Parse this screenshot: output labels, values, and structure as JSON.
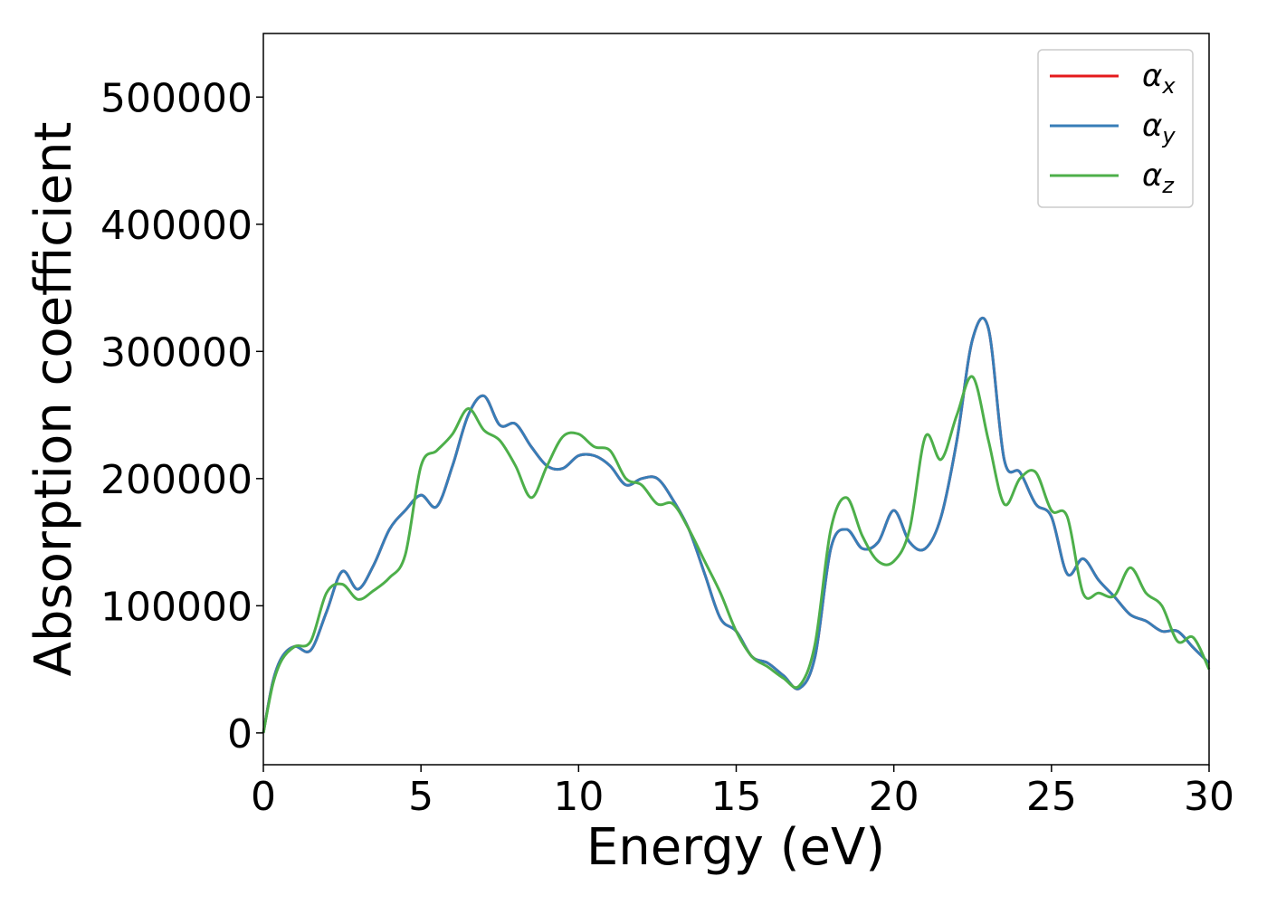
{
  "chart_data": {
    "type": "line",
    "title": "",
    "xlabel": "Energy (eV)",
    "ylabel": "Absorption coefficient",
    "xlim": [
      0,
      30
    ],
    "ylim": [
      -25000,
      550000
    ],
    "xticks": [
      0,
      5,
      10,
      15,
      20,
      25,
      30
    ],
    "xtick_labels": [
      "0",
      "5",
      "10",
      "15",
      "20",
      "25",
      "30"
    ],
    "yticks": [
      0,
      100000,
      200000,
      300000,
      400000,
      500000
    ],
    "ytick_labels": [
      "0",
      "100000",
      "200000",
      "300000",
      "400000",
      "500000"
    ],
    "grid": false,
    "legend_position": "top-right",
    "series": [
      {
        "name": "α",
        "subscript": "x",
        "color": "#e41a1c",
        "x": [
          0,
          0.3,
          0.6,
          1.0,
          1.5,
          2.0,
          2.5,
          3.0,
          3.5,
          4.0,
          4.5,
          5.0,
          5.5,
          6.0,
          6.5,
          7.0,
          7.5,
          8.0,
          8.5,
          9.0,
          9.5,
          10.0,
          10.5,
          11.0,
          11.5,
          12.0,
          12.5,
          13.0,
          13.5,
          14.0,
          14.5,
          15.0,
          15.5,
          16.0,
          16.5,
          17.0,
          17.5,
          18.0,
          18.5,
          19.0,
          19.5,
          20.0,
          20.5,
          21.0,
          21.5,
          22.0,
          22.5,
          23.0,
          23.5,
          24.0,
          24.5,
          25.0,
          25.5,
          26.0,
          26.5,
          27.0,
          27.5,
          28.0,
          28.5,
          29.0,
          29.5,
          30.0
        ],
        "values": [
          0,
          40000,
          60000,
          68000,
          65000,
          95000,
          127000,
          113000,
          132000,
          160000,
          175000,
          187000,
          178000,
          210000,
          250000,
          265000,
          242000,
          243000,
          225000,
          210000,
          208000,
          218000,
          218000,
          210000,
          195000,
          200000,
          200000,
          183000,
          160000,
          125000,
          90000,
          80000,
          60000,
          55000,
          45000,
          35000,
          60000,
          145000,
          160000,
          145000,
          150000,
          175000,
          150000,
          145000,
          170000,
          230000,
          310000,
          318000,
          215000,
          205000,
          180000,
          170000,
          125000,
          137000,
          120000,
          107000,
          93000,
          88000,
          80000,
          80000,
          67000,
          55000
        ]
      },
      {
        "name": "α",
        "subscript": "y",
        "color": "#377eb8",
        "x": [
          0,
          0.3,
          0.6,
          1.0,
          1.5,
          2.0,
          2.5,
          3.0,
          3.5,
          4.0,
          4.5,
          5.0,
          5.5,
          6.0,
          6.5,
          7.0,
          7.5,
          8.0,
          8.5,
          9.0,
          9.5,
          10.0,
          10.5,
          11.0,
          11.5,
          12.0,
          12.5,
          13.0,
          13.5,
          14.0,
          14.5,
          15.0,
          15.5,
          16.0,
          16.5,
          17.0,
          17.5,
          18.0,
          18.5,
          19.0,
          19.5,
          20.0,
          20.5,
          21.0,
          21.5,
          22.0,
          22.5,
          23.0,
          23.5,
          24.0,
          24.5,
          25.0,
          25.5,
          26.0,
          26.5,
          27.0,
          27.5,
          28.0,
          28.5,
          29.0,
          29.5,
          30.0
        ],
        "values": [
          0,
          40000,
          60000,
          68000,
          65000,
          95000,
          127000,
          113000,
          132000,
          160000,
          175000,
          187000,
          178000,
          210000,
          250000,
          265000,
          242000,
          243000,
          225000,
          210000,
          208000,
          218000,
          218000,
          210000,
          195000,
          200000,
          200000,
          183000,
          160000,
          125000,
          90000,
          80000,
          60000,
          55000,
          45000,
          35000,
          60000,
          145000,
          160000,
          145000,
          150000,
          175000,
          150000,
          145000,
          170000,
          230000,
          310000,
          318000,
          215000,
          205000,
          180000,
          170000,
          125000,
          137000,
          120000,
          107000,
          93000,
          88000,
          80000,
          80000,
          67000,
          55000
        ]
      },
      {
        "name": "α",
        "subscript": "z",
        "color": "#4daf4a",
        "x": [
          0,
          0.3,
          0.6,
          1.0,
          1.5,
          2.0,
          2.5,
          3.0,
          3.5,
          4.0,
          4.5,
          5.0,
          5.5,
          6.0,
          6.5,
          7.0,
          7.5,
          8.0,
          8.5,
          9.0,
          9.5,
          10.0,
          10.5,
          11.0,
          11.5,
          12.0,
          12.5,
          13.0,
          13.5,
          14.0,
          14.5,
          15.0,
          15.5,
          16.0,
          16.5,
          17.0,
          17.5,
          18.0,
          18.5,
          19.0,
          19.5,
          20.0,
          20.5,
          21.0,
          21.5,
          22.0,
          22.5,
          23.0,
          23.5,
          24.0,
          24.5,
          25.0,
          25.5,
          26.0,
          26.5,
          27.0,
          27.5,
          28.0,
          28.5,
          29.0,
          29.5,
          30.0
        ],
        "values": [
          0,
          38000,
          58000,
          68000,
          72000,
          110000,
          117000,
          105000,
          112000,
          122000,
          140000,
          210000,
          222000,
          235000,
          255000,
          238000,
          230000,
          210000,
          185000,
          210000,
          233000,
          235000,
          225000,
          222000,
          200000,
          195000,
          180000,
          180000,
          160000,
          135000,
          110000,
          80000,
          60000,
          52000,
          43000,
          37000,
          70000,
          160000,
          185000,
          155000,
          135000,
          135000,
          160000,
          233000,
          215000,
          250000,
          280000,
          230000,
          180000,
          200000,
          205000,
          175000,
          170000,
          110000,
          110000,
          108000,
          130000,
          110000,
          100000,
          72000,
          75000,
          50000
        ]
      }
    ]
  }
}
